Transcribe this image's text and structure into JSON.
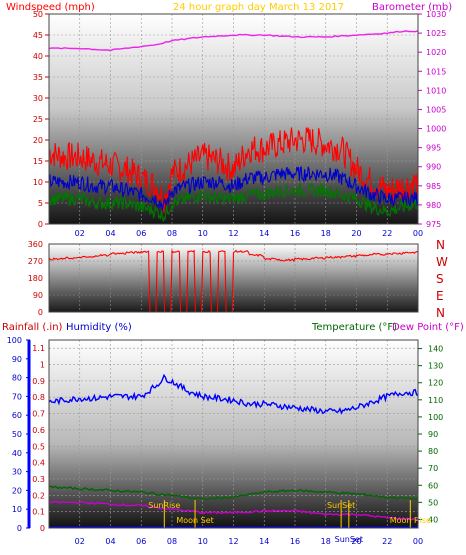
{
  "header": {
    "wind_label": "Windspeed (mph)",
    "graph_title": "24 hour graph day   March 13 2017",
    "baro_label": "Barometer (mb)"
  },
  "colors": {
    "wind_gust": "#ff0000",
    "wind_avg": "#0000cc",
    "wind_min": "#007700",
    "barometer": "#ee22ee",
    "direction": "#ff0000",
    "humidity": "#0000ff",
    "temperature": "#006600",
    "dewpoint": "#cc00cc",
    "rain": "#0000ff",
    "sun_text": "#ffcc00",
    "moon_text": "#ffcc00"
  },
  "chart_data": [
    {
      "type": "line",
      "name": "wind-and-barometer",
      "title": "24 hour graph day   March 13 2017",
      "ylabel_left": "Windspeed (mph)",
      "ylabel_right": "Barometer (mb)",
      "ylim_left": [
        0,
        50
      ],
      "ylim_right": [
        975,
        1030
      ],
      "y_ticks_left": [
        "50",
        "45",
        "40",
        "35",
        "30",
        "25",
        "20",
        "15",
        "10",
        "5",
        "0"
      ],
      "y_ticks_right": [
        "1030",
        "1025",
        "1020",
        "1015",
        "1010",
        "1005",
        "1000",
        "995",
        "990",
        "985",
        "980",
        "975"
      ],
      "x_ticks": [
        "02",
        "04",
        "06",
        "08",
        "10",
        "12",
        "14",
        "16",
        "18",
        "20",
        "22",
        "00"
      ],
      "xlim_hours": [
        0,
        24
      ],
      "grid": true,
      "series": [
        {
          "key": "gust",
          "x": [
            0,
            1,
            2,
            3,
            4,
            5,
            6,
            7,
            7.5,
            8,
            9,
            10,
            11,
            12,
            13,
            14,
            15,
            16,
            17,
            18,
            19,
            20,
            21,
            22,
            23,
            24
          ],
          "values": [
            17,
            16,
            16,
            15,
            14,
            13,
            11,
            9,
            6,
            12,
            14,
            16,
            15,
            13,
            18,
            18,
            19,
            20,
            20,
            19,
            18,
            13,
            10,
            8,
            9,
            10
          ]
        },
        {
          "key": "average",
          "x": [
            0,
            1,
            2,
            3,
            4,
            5,
            6,
            7,
            7.5,
            8,
            9,
            10,
            11,
            12,
            13,
            14,
            15,
            16,
            17,
            18,
            19,
            20,
            21,
            22,
            23,
            24
          ],
          "values": [
            10,
            10,
            10,
            9,
            9,
            8,
            7,
            6,
            4,
            8,
            9,
            10,
            10,
            9,
            11,
            11,
            12,
            12,
            12,
            12,
            11,
            9,
            7,
            6,
            6,
            6
          ]
        },
        {
          "key": "minimum",
          "x": [
            0,
            1,
            2,
            3,
            4,
            5,
            6,
            7,
            7.5,
            8,
            9,
            10,
            11,
            12,
            13,
            14,
            15,
            16,
            17,
            18,
            19,
            20,
            21,
            22,
            23,
            24
          ],
          "values": [
            6,
            6,
            6,
            5,
            5,
            5,
            4,
            3,
            2,
            5,
            6,
            7,
            6,
            6,
            7,
            7,
            8,
            8,
            8,
            8,
            7,
            6,
            4,
            3,
            4,
            5
          ]
        },
        {
          "key": "barometer",
          "axis": "right",
          "x": [
            0,
            2,
            4,
            5,
            6,
            7,
            8,
            10,
            12,
            14,
            16,
            18,
            20,
            22,
            23,
            24
          ],
          "values": [
            1021.0,
            1021.0,
            1020.5,
            1021.0,
            1021.5,
            1022.0,
            1023.0,
            1024.0,
            1024.5,
            1024.5,
            1024.0,
            1024.0,
            1024.5,
            1025.0,
            1025.5,
            1025.5
          ]
        }
      ]
    },
    {
      "type": "line",
      "name": "wind-direction",
      "ylim": [
        0,
        360
      ],
      "y_ticks": [
        "360",
        "270",
        "180",
        "90",
        "0"
      ],
      "compass_labels": [
        "N",
        "W",
        "S",
        "E",
        "N"
      ],
      "series": [
        {
          "key": "direction",
          "x": [
            0,
            1,
            2,
            3,
            4,
            5,
            6,
            6.5,
            7,
            7.5,
            8,
            8.5,
            9,
            9.5,
            10,
            10.5,
            11,
            11.5,
            12,
            13,
            14,
            15,
            16,
            17,
            18,
            19,
            20,
            21,
            22,
            23,
            24
          ],
          "values": [
            280,
            285,
            290,
            300,
            310,
            315,
            320,
            0,
            320,
            0,
            320,
            0,
            320,
            0,
            320,
            0,
            320,
            0,
            320,
            300,
            280,
            275,
            280,
            285,
            290,
            295,
            300,
            305,
            310,
            315,
            320
          ]
        }
      ]
    },
    {
      "type": "line",
      "name": "humidity-temperature-rain",
      "labels": {
        "rain": "Rainfall (.in)",
        "humidity": "Humidity (%)",
        "temperature": "Temperature (°F)",
        "dewpoint": "Dew Point (°F)"
      },
      "humidity_ticks": [
        "100",
        "90",
        "80",
        "70",
        "60",
        "50",
        "40",
        "30",
        "20",
        "10",
        "0"
      ],
      "rain_ticks": [
        "1.1",
        "1",
        "0.9",
        "0.8",
        "0.7",
        "0.6",
        "0.5",
        "0.4",
        "0.3",
        "0.2",
        "0.1",
        "0"
      ],
      "temp_ticks": [
        "140",
        "130",
        "120",
        "110",
        "100",
        "90",
        "80",
        "70",
        "60",
        "50",
        "40"
      ],
      "humidity_ylim": [
        0,
        100
      ],
      "temp_ylim": [
        35,
        145
      ],
      "series": [
        {
          "key": "humidity",
          "x": [
            0,
            1,
            2,
            3,
            4,
            5,
            6,
            7,
            7.5,
            8,
            9,
            10,
            11,
            12,
            13,
            14,
            15,
            16,
            17,
            18,
            19,
            20,
            21,
            22,
            23,
            24
          ],
          "values": [
            67,
            68,
            69,
            69,
            70,
            70,
            70,
            76,
            80,
            78,
            73,
            70,
            69,
            68,
            66,
            66,
            65,
            64,
            63,
            62,
            62,
            64,
            67,
            70,
            72,
            72
          ]
        },
        {
          "key": "temperature",
          "axis": "temp",
          "x": [
            0,
            2,
            4,
            6,
            8,
            10,
            12,
            14,
            16,
            18,
            20,
            22,
            24
          ],
          "values": [
            59,
            58,
            57,
            56,
            54,
            52,
            53,
            56,
            57,
            56,
            55,
            53,
            52
          ]
        },
        {
          "key": "dewpoint",
          "axis": "temp",
          "x": [
            0,
            2,
            4,
            6,
            8,
            10,
            12,
            14,
            16,
            18,
            20,
            22,
            24
          ],
          "values": [
            50,
            50,
            49,
            48,
            46,
            44,
            44,
            45,
            45,
            43,
            43,
            41,
            40
          ]
        },
        {
          "key": "rain",
          "axis": "rain",
          "x": [
            0,
            24
          ],
          "values": [
            0,
            0
          ]
        }
      ],
      "events": [
        {
          "label": "SunRise",
          "hour": 7.5,
          "row": "upper"
        },
        {
          "label": "Moon Set",
          "hour": 9.5,
          "row": "lower"
        },
        {
          "label": "SunSet",
          "hour": 19.0,
          "row": "upper"
        },
        {
          "label": "SunSet",
          "hour": 19.5,
          "row": "bottom"
        },
        {
          "label": "Moon Rise",
          "hour": 23.5,
          "row": "lower"
        }
      ],
      "x_ticks": [
        "02",
        "04",
        "06",
        "08",
        "10",
        "12",
        "14",
        "16",
        "18",
        "20",
        "22",
        "00"
      ]
    }
  ]
}
